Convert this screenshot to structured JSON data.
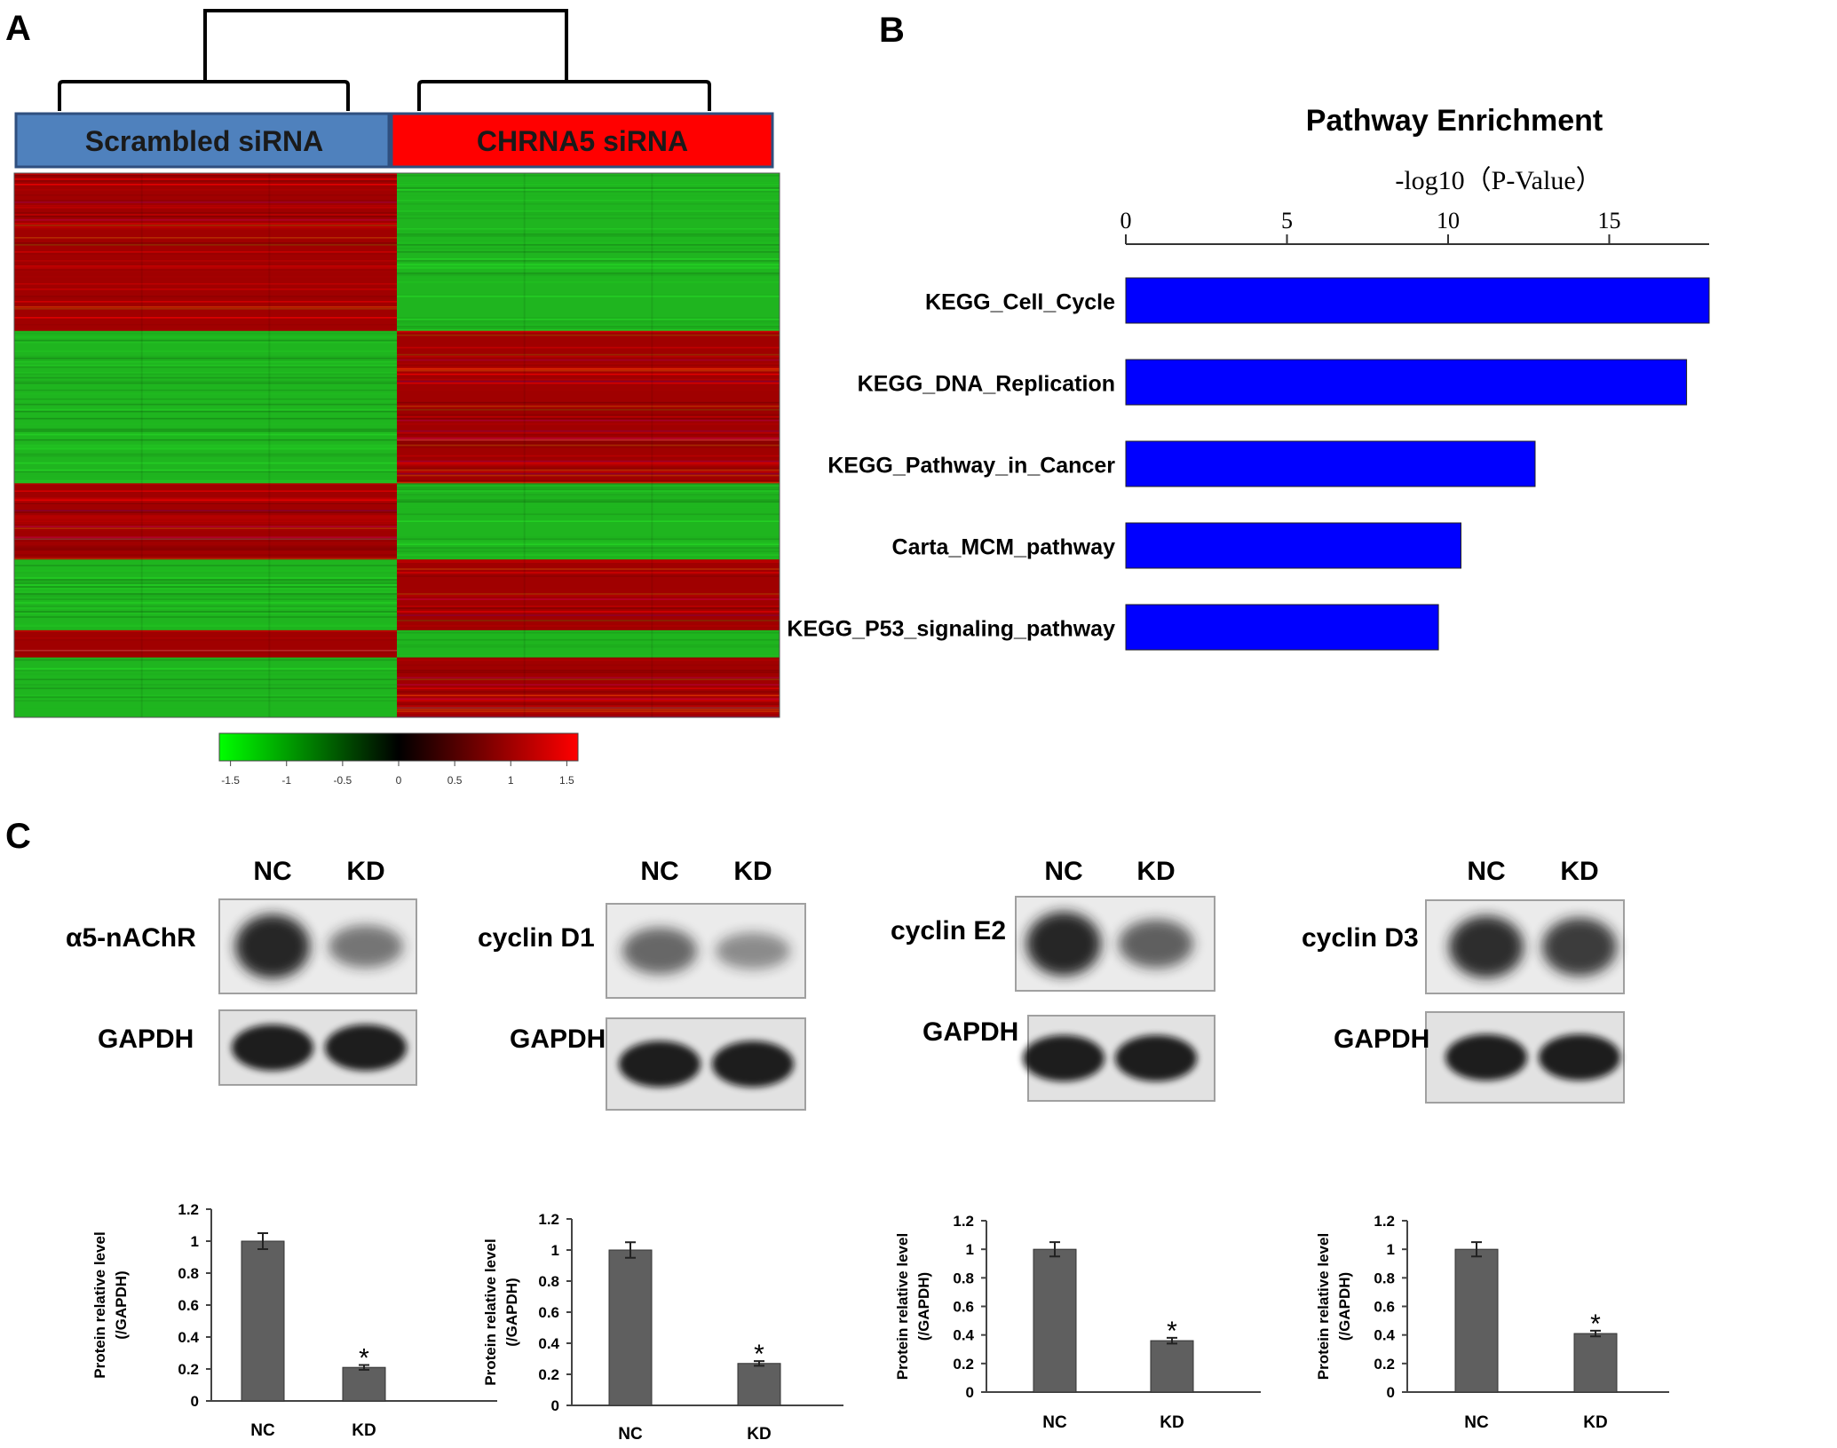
{
  "panels": {
    "a": "A",
    "b": "B",
    "c": "C"
  },
  "colors": {
    "scrambled": "#4f81bd",
    "chrna5": "#ff0000",
    "heat_red": "#a00000",
    "heat_green": "#1fb51f",
    "pathway_bar": "#0000ff",
    "protein_bar": "#5f5f5f"
  },
  "heatmap": {
    "groups": [
      "Scrambled siRNA",
      "CHRNA5 siRNA"
    ],
    "columns_per_group": 3,
    "blocks": [
      {
        "scrambled": "red",
        "chrna5": "green",
        "weight": 29
      },
      {
        "scrambled": "green",
        "chrna5": "red",
        "weight": 28
      },
      {
        "scrambled": "red",
        "chrna5": "green",
        "weight": 14
      },
      {
        "scrambled": "green",
        "chrna5": "red",
        "weight": 13
      },
      {
        "scrambled": "red",
        "chrna5": "green",
        "weight": 5
      },
      {
        "scrambled": "green",
        "chrna5": "red",
        "weight": 11
      }
    ],
    "colorbar": {
      "ticks": [
        "-1.5",
        "-1",
        "-0.5",
        "0",
        "0.5",
        "1",
        "1.5"
      ],
      "min": -1.6,
      "max": 1.6
    }
  },
  "chart_data": [
    {
      "type": "bar",
      "orientation": "horizontal",
      "title": "Pathway Enrichment",
      "xlabel": "-log10（P-Value）",
      "categories": [
        "KEGG_Cell_Cycle",
        "KEGG_DNA_Replication",
        "KEGG_Pathway_in_Cancer",
        "Carta_MCM_pathway",
        "KEGG_P53_signaling_pathway"
      ],
      "values": [
        18.1,
        17.4,
        12.7,
        10.4,
        9.7
      ],
      "xticks": [
        "0",
        "5",
        "10",
        "15"
      ],
      "xlim": [
        0,
        18.1
      ]
    },
    {
      "type": "bar",
      "protein": "α5-nAChR",
      "categories": [
        "NC",
        "KD"
      ],
      "values": [
        1.0,
        0.21
      ],
      "errors": [
        0.05,
        0.015
      ],
      "significance": [
        "",
        "*"
      ],
      "ylabel": [
        "Protein relative level",
        "(/GAPDH)"
      ],
      "yticks": [
        "0",
        "0.2",
        "0.4",
        "0.6",
        "0.8",
        "1",
        "1.2"
      ],
      "ylim": [
        0,
        1.2
      ]
    },
    {
      "type": "bar",
      "protein": "cyclin D1",
      "categories": [
        "NC",
        "KD"
      ],
      "values": [
        1.0,
        0.27
      ],
      "errors": [
        0.05,
        0.015
      ],
      "significance": [
        "",
        "*"
      ],
      "ylabel": [
        "Protein relative level",
        "(/GAPDH)"
      ],
      "yticks": [
        "0",
        "0.2",
        "0.4",
        "0.6",
        "0.8",
        "1",
        "1.2"
      ],
      "ylim": [
        0,
        1.2
      ]
    },
    {
      "type": "bar",
      "protein": "cyclin E2",
      "categories": [
        "NC",
        "KD"
      ],
      "values": [
        1.0,
        0.36
      ],
      "errors": [
        0.05,
        0.02
      ],
      "significance": [
        "",
        "*"
      ],
      "ylabel": [
        "Protein relative level",
        "(/GAPDH)"
      ],
      "yticks": [
        "0",
        "0.2",
        "0.4",
        "0.6",
        "0.8",
        "1",
        "1.2"
      ],
      "ylim": [
        0,
        1.2
      ]
    },
    {
      "type": "bar",
      "protein": "cyclin D3",
      "categories": [
        "NC",
        "KD"
      ],
      "values": [
        1.0,
        0.41
      ],
      "errors": [
        0.05,
        0.02
      ],
      "significance": [
        "",
        "*"
      ],
      "ylabel": [
        "Protein relative level",
        "(/GAPDH)"
      ],
      "yticks": [
        "0",
        "0.2",
        "0.4",
        "0.6",
        "0.8",
        "1",
        "1.2"
      ],
      "ylim": [
        0,
        1.2
      ]
    }
  ],
  "blots": [
    {
      "target": "α5-nAChR",
      "loading": "GAPDH",
      "lanes": [
        "NC",
        "KD"
      ],
      "target_intensity": [
        1.0,
        0.45
      ]
    },
    {
      "target": "cyclin D1",
      "loading": "GAPDH",
      "lanes": [
        "NC",
        "KD"
      ],
      "target_intensity": [
        0.55,
        0.3
      ]
    },
    {
      "target": "cyclin E2",
      "loading": "GAPDH",
      "lanes": [
        "NC",
        "KD"
      ],
      "target_intensity": [
        1.0,
        0.6
      ]
    },
    {
      "target": "cyclin D3",
      "loading": "GAPDH",
      "lanes": [
        "NC",
        "KD"
      ],
      "target_intensity": [
        0.95,
        0.85
      ]
    }
  ]
}
